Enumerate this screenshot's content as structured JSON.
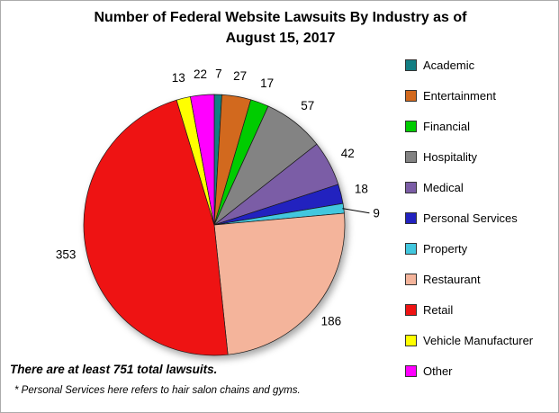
{
  "title": {
    "line1": "Number of Federal Website Lawsuits By Industry as of",
    "line2": "August 15, 2017"
  },
  "chart_data": {
    "type": "pie",
    "title": "Number of Federal Website Lawsuits By Industry as of August 15, 2017",
    "direction": "clockwise",
    "start_angle": "top",
    "legend_position": "right",
    "data_labels": "outside",
    "total": 751,
    "slices": [
      {
        "label": "Academic",
        "value": 7,
        "color": "#137E83"
      },
      {
        "label": "Entertainment",
        "value": 27,
        "color": "#D2691E"
      },
      {
        "label": "Financial",
        "value": 17,
        "color": "#00CC00"
      },
      {
        "label": "Hospitality",
        "value": 57,
        "color": "#838383"
      },
      {
        "label": "Medical",
        "value": 42,
        "color": "#7B5DA6"
      },
      {
        "label": "Personal Services",
        "value": 18,
        "color": "#2222BF"
      },
      {
        "label": "Property",
        "value": 9,
        "color": "#42C7DE",
        "leader_line": true
      },
      {
        "label": "Restaurant",
        "value": 186,
        "color": "#F4B49B"
      },
      {
        "label": "Retail",
        "value": 353,
        "color": "#EE1313"
      },
      {
        "label": "Vehicle Manufacturer",
        "value": 13,
        "color": "#FFFF00"
      },
      {
        "label": "Other",
        "value": 22,
        "color": "#FF00FF"
      }
    ]
  },
  "notes": {
    "total": "There are at least 751 total lawsuits.",
    "footnote": "* Personal Services here refers to hair salon chains and gyms."
  }
}
